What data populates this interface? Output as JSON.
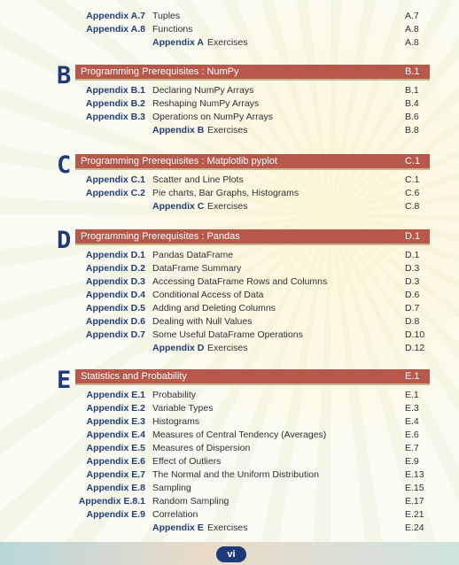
{
  "prelude": [
    {
      "code": "Appendix A.7",
      "title": "Tuples",
      "page": "A.7"
    },
    {
      "code": "Appendix A.8",
      "title": "Functions",
      "page": "A.8"
    }
  ],
  "prelude_exercise": {
    "code": "Appendix A",
    "title": "Exercises",
    "page": "A.8"
  },
  "sections": [
    {
      "letter": "B",
      "title": "Programming Prerequisites : NumPy",
      "page": "B.1",
      "entries": [
        {
          "code": "Appendix B.1",
          "title": "Declaring NumPy Arrays",
          "page": "B.1"
        },
        {
          "code": "Appendix B.2",
          "title": "Reshaping NumPy Arrays",
          "page": "B.4"
        },
        {
          "code": "Appendix B.3",
          "title": "Operations on NumPy Arrays",
          "page": "B.6"
        }
      ],
      "exercise": {
        "code": "Appendix B",
        "title": "Exercises",
        "page": "B.8"
      }
    },
    {
      "letter": "C",
      "title": "Programming Prerequisites : Matplotlib pyplot",
      "page": "C.1",
      "entries": [
        {
          "code": "Appendix C.1",
          "title": "Scatter and Line Plots",
          "page": "C.1"
        },
        {
          "code": "Appendix C.2",
          "title": "Pie charts, Bar Graphs, Histograms",
          "page": "C.6"
        }
      ],
      "exercise": {
        "code": "Appendix C",
        "title": "Exercises",
        "page": "C.8"
      }
    },
    {
      "letter": "D",
      "title": "Programming Prerequisites : Pandas",
      "page": "D.1",
      "entries": [
        {
          "code": "Appendix D.1",
          "title": "Pandas DataFrame",
          "page": "D.1"
        },
        {
          "code": "Appendix D.2",
          "title": "DataFrame Summary",
          "page": "D.3"
        },
        {
          "code": "Appendix D.3",
          "title": "Accessing DataFrame Rows and Columns",
          "page": "D.3"
        },
        {
          "code": "Appendix D.4",
          "title": "Conditional Access of Data",
          "page": "D.6"
        },
        {
          "code": "Appendix D.5",
          "title": "Adding and Deleting Columns",
          "page": "D.7"
        },
        {
          "code": "Appendix D.6",
          "title": "Dealing with Null Values",
          "page": "D.8"
        },
        {
          "code": "Appendix D.7",
          "title": "Some Useful DataFrame Operations",
          "page": "D.10"
        }
      ],
      "exercise": {
        "code": "Appendix D",
        "title": "Exercises",
        "page": "D.12"
      }
    },
    {
      "letter": "E",
      "title": "Statistics and Probability",
      "page": "E.1",
      "entries": [
        {
          "code": "Appendix E.1",
          "title": "Probability",
          "page": "E.1"
        },
        {
          "code": "Appendix E.2",
          "title": "Variable Types",
          "page": "E.3"
        },
        {
          "code": "Appendix E.3",
          "title": "Histograms",
          "page": "E.4"
        },
        {
          "code": "Appendix E.4",
          "title": "Measures of Central Tendency (Averages)",
          "page": "E.6"
        },
        {
          "code": "Appendix E.5",
          "title": "Measures of Dispersion",
          "page": "E.7"
        },
        {
          "code": "Appendix E.6",
          "title": "Effect of Outliers",
          "page": "E.9"
        },
        {
          "code": "Appendix E.7",
          "title": "The Normal and the Uniform Distribution",
          "page": "E.13"
        },
        {
          "code": "Appendix E.8",
          "title": "Sampling",
          "page": "E.15"
        },
        {
          "code": "Appendix E.8.1",
          "title": "Random Sampling",
          "page": "E.17"
        },
        {
          "code": "Appendix E.9",
          "title": "Correlation",
          "page": "E.21"
        }
      ],
      "exercise": {
        "code": "Appendix E",
        "title": "Exercises",
        "page": "E.24"
      }
    }
  ],
  "page_number": "vi",
  "colors": {
    "accent_blue": "#213d7a",
    "section_bar": "#b7584a"
  }
}
